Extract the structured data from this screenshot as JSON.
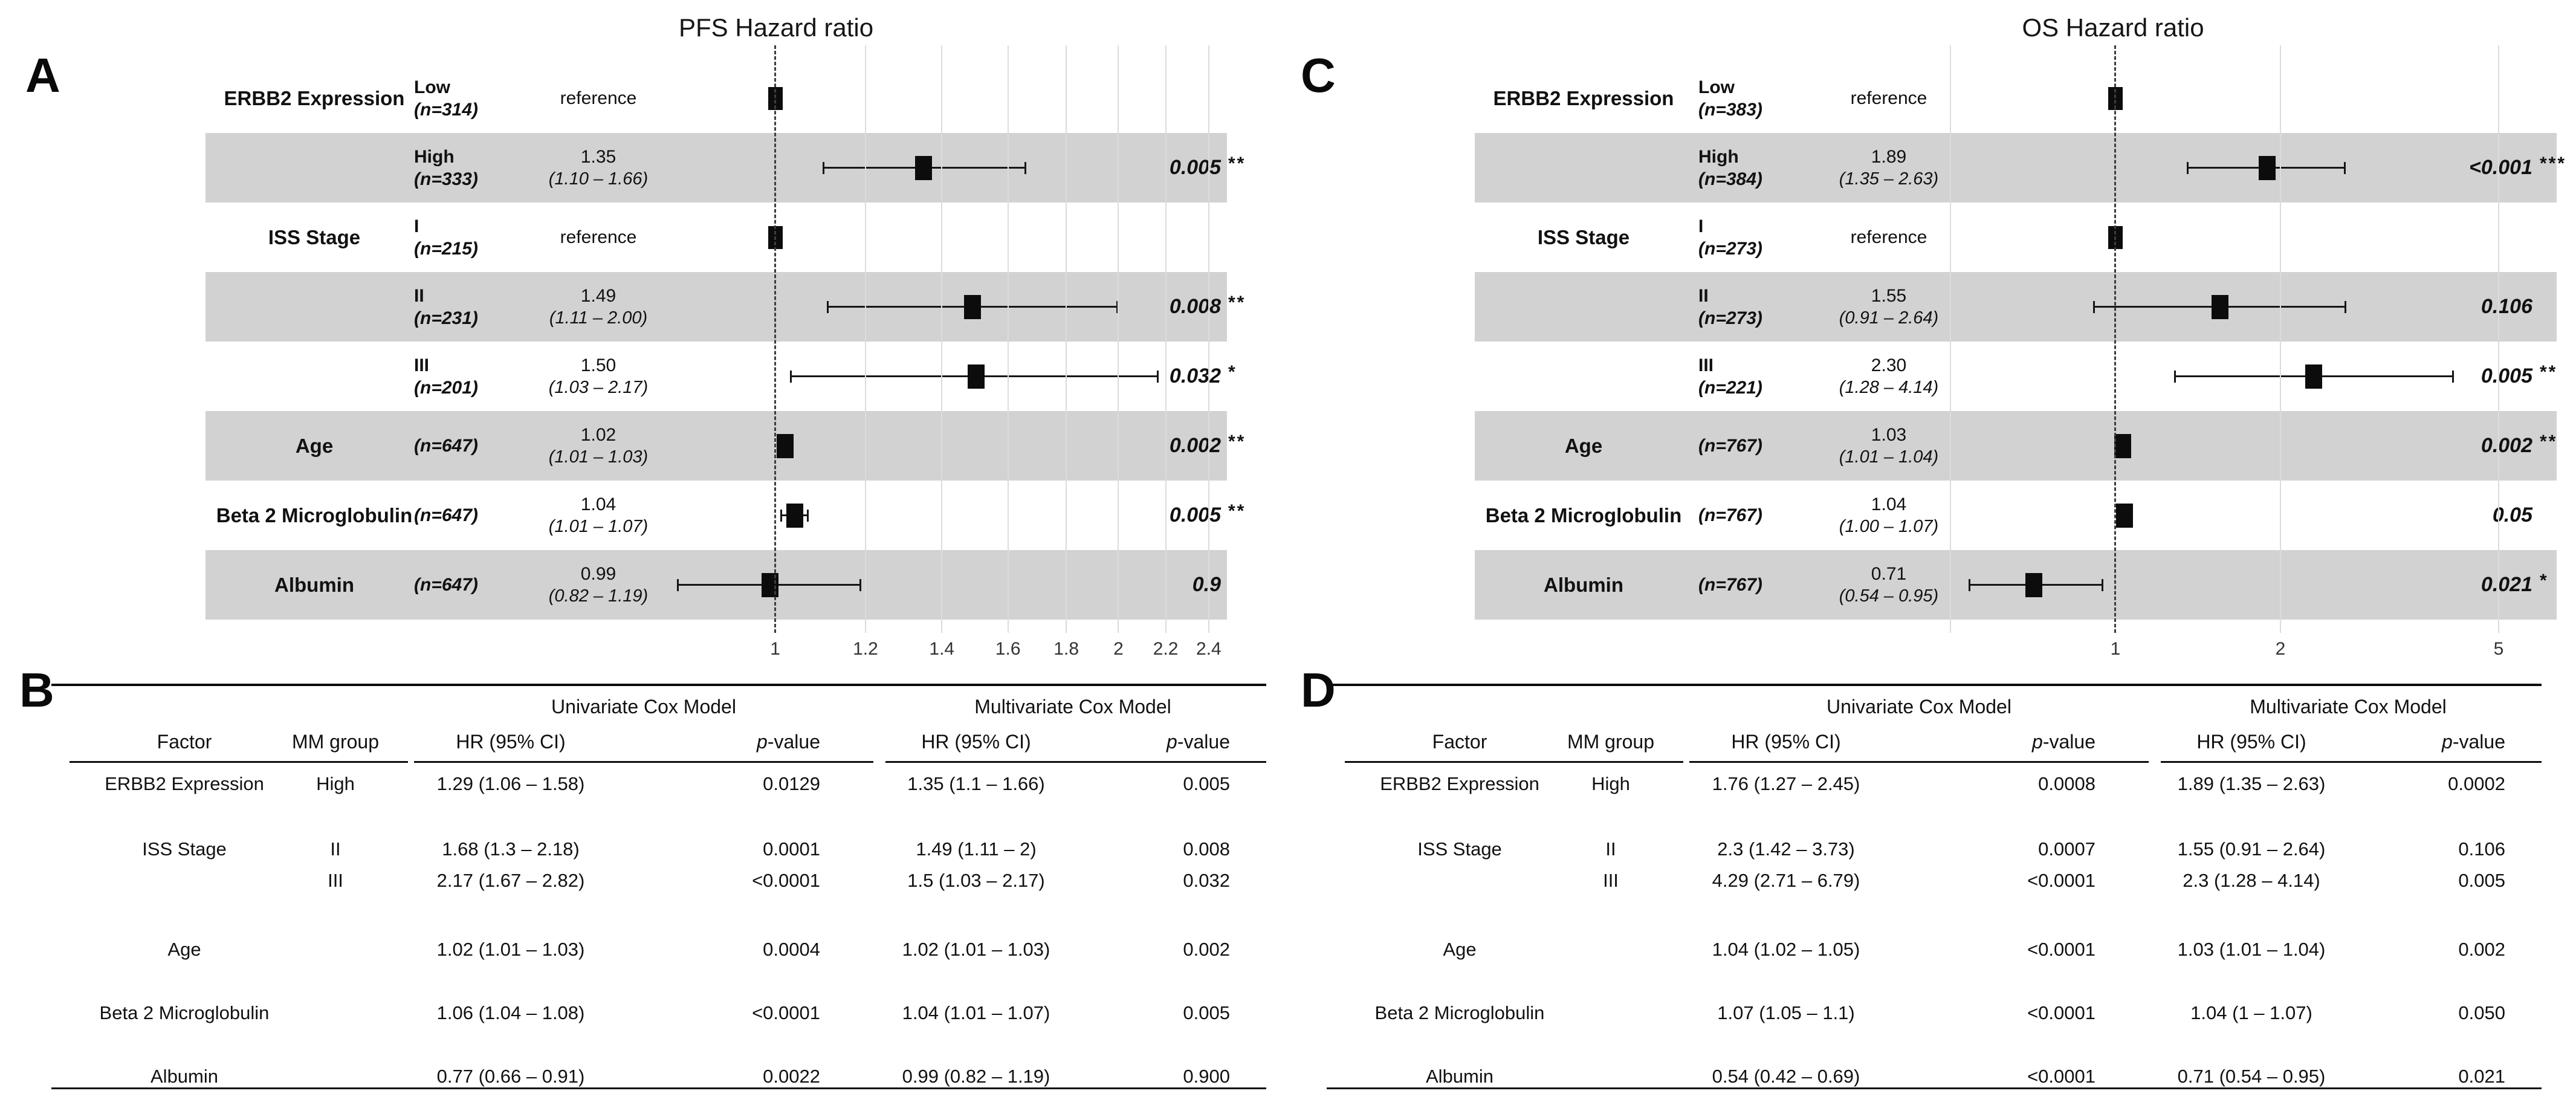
{
  "figure": {
    "letters": [
      "A",
      "B",
      "C",
      "D"
    ],
    "p_header": {
      "italic": "p",
      "rest": "-value"
    }
  },
  "chart_data": [
    {
      "type": "scatter",
      "subtype": "forest-plot",
      "panel": "A",
      "title": "PFS Hazard ratio",
      "x_scale": "log",
      "x_domain": [
        0.81,
        2.49
      ],
      "x_ticks": [
        1,
        1.2,
        1.4,
        1.6,
        1.8,
        2,
        2.2,
        2.4
      ],
      "tick_labels": [
        "1",
        "1.2",
        "1.4",
        "1.6",
        "1.8",
        "2",
        "2.2",
        "2.4"
      ],
      "light_gridlines": [
        1.2,
        1.4,
        1.6,
        1.8,
        2,
        2.2,
        2.4
      ],
      "reference_line": 1,
      "band_color": "#d2d2d2",
      "rows": [
        {
          "factor": "ERBB2 Expression",
          "group": "Low",
          "n": "(n=314)",
          "hr_label": "reference",
          "hr": 1,
          "lo": null,
          "hi": null,
          "p": "",
          "stars": "",
          "shaded": false
        },
        {
          "factor": "",
          "group": "High",
          "n": "(n=333)",
          "hr_label": "1.35",
          "ci_label": "(1.10 – 1.66)",
          "hr": 1.35,
          "lo": 1.1,
          "hi": 1.66,
          "p": "0.005",
          "stars": "**",
          "shaded": true
        },
        {
          "factor": "ISS Stage",
          "group": "I",
          "n": "(n=215)",
          "hr_label": "reference",
          "hr": 1,
          "lo": null,
          "hi": null,
          "p": "",
          "stars": "",
          "shaded": false
        },
        {
          "factor": "",
          "group": "II",
          "n": "(n=231)",
          "hr_label": "1.49",
          "ci_label": "(1.11 – 2.00)",
          "hr": 1.49,
          "lo": 1.11,
          "hi": 2.0,
          "p": "0.008",
          "stars": "**",
          "shaded": true
        },
        {
          "factor": "",
          "group": "III",
          "n": "(n=201)",
          "hr_label": "1.50",
          "ci_label": "(1.03 – 2.17)",
          "hr": 1.5,
          "lo": 1.03,
          "hi": 2.17,
          "p": "0.032",
          "stars": "*",
          "shaded": false
        },
        {
          "factor": "Age",
          "group": "",
          "n": "(n=647)",
          "hr_label": "1.02",
          "ci_label": "(1.01 – 1.03)",
          "hr": 1.02,
          "lo": 1.01,
          "hi": 1.03,
          "p": "0.002",
          "stars": "**",
          "shaded": true
        },
        {
          "factor": "Beta 2 Microglobulin",
          "group": "",
          "n": "(n=647)",
          "hr_label": "1.04",
          "ci_label": "(1.01 – 1.07)",
          "hr": 1.04,
          "lo": 1.01,
          "hi": 1.07,
          "p": "0.005",
          "stars": "**",
          "shaded": false
        },
        {
          "factor": "Albumin",
          "group": "",
          "n": "(n=647)",
          "hr_label": "0.99",
          "ci_label": "(0.82 – 1.19)",
          "hr": 0.99,
          "lo": 0.82,
          "hi": 1.19,
          "p": "0.9",
          "stars": "",
          "shaded": true
        }
      ]
    },
    {
      "type": "table",
      "panel": "B",
      "col_groups": [
        "Univariate Cox Model",
        "Multivariate Cox Model"
      ],
      "columns": [
        "Factor",
        "MM group",
        "HR (95% CI)",
        "p-value",
        "HR (95% CI)",
        "p-value"
      ],
      "rows": [
        [
          "ERBB2 Expression",
          "High",
          "1.29 (1.06 – 1.58)",
          "0.0129",
          "1.35 (1.1 – 1.66)",
          "0.005"
        ],
        [
          "ISS Stage",
          "II",
          "1.68 (1.3 – 2.18)",
          "0.0001",
          "1.49 (1.11 – 2)",
          "0.008"
        ],
        [
          "",
          "III",
          "2.17 (1.67 – 2.82)",
          "<0.0001",
          "1.5 (1.03 – 2.17)",
          "0.032"
        ],
        [
          "Age",
          "",
          "1.02 (1.01 – 1.03)",
          "0.0004",
          "1.02 (1.01 – 1.03)",
          "0.002"
        ],
        [
          "Beta 2 Microglobulin",
          "",
          "1.06 (1.04 – 1.08)",
          "<0.0001",
          "1.04 (1.01 – 1.07)",
          "0.005"
        ],
        [
          "Albumin",
          "",
          "0.77 (0.66 – 0.91)",
          "0.0022",
          "0.99 (0.82 – 1.19)",
          "0.900"
        ]
      ]
    },
    {
      "type": "scatter",
      "subtype": "forest-plot",
      "panel": "C",
      "title": "OS Hazard ratio",
      "x_scale": "log",
      "x_domain": [
        0.467,
        6.38
      ],
      "x_ticks": [
        1,
        2,
        5
      ],
      "tick_labels": [
        "1",
        "2",
        "5"
      ],
      "light_gridlines": [
        0.5,
        2,
        5
      ],
      "reference_line": 1,
      "band_color": "#d2d2d2",
      "rows": [
        {
          "factor": "ERBB2 Expression",
          "group": "Low",
          "n": "(n=383)",
          "hr_label": "reference",
          "hr": 1,
          "lo": null,
          "hi": null,
          "p": "",
          "stars": "",
          "shaded": false
        },
        {
          "factor": "",
          "group": "High",
          "n": "(n=384)",
          "hr_label": "1.89",
          "ci_label": "(1.35 – 2.63)",
          "hr": 1.89,
          "lo": 1.35,
          "hi": 2.63,
          "p": "<0.001",
          "stars": "***",
          "shaded": true
        },
        {
          "factor": "ISS Stage",
          "group": "I",
          "n": "(n=273)",
          "hr_label": "reference",
          "hr": 1,
          "lo": null,
          "hi": null,
          "p": "",
          "stars": "",
          "shaded": false
        },
        {
          "factor": "",
          "group": "II",
          "n": "(n=273)",
          "hr_label": "1.55",
          "ci_label": "(0.91 – 2.64)",
          "hr": 1.55,
          "lo": 0.91,
          "hi": 2.64,
          "p": "0.106",
          "stars": "",
          "shaded": true
        },
        {
          "factor": "",
          "group": "III",
          "n": "(n=221)",
          "hr_label": "2.30",
          "ci_label": "(1.28 – 4.14)",
          "hr": 2.3,
          "lo": 1.28,
          "hi": 4.14,
          "p": "0.005",
          "stars": "**",
          "shaded": false
        },
        {
          "factor": "Age",
          "group": "",
          "n": "(n=767)",
          "hr_label": "1.03",
          "ci_label": "(1.01 – 1.04)",
          "hr": 1.03,
          "lo": 1.01,
          "hi": 1.04,
          "p": "0.002",
          "stars": "**",
          "shaded": true
        },
        {
          "factor": "Beta 2 Microglobulin",
          "group": "",
          "n": "(n=767)",
          "hr_label": "1.04",
          "ci_label": "(1.00 – 1.07)",
          "hr": 1.04,
          "lo": 1.0,
          "hi": 1.07,
          "p": "0.05",
          "stars": "",
          "shaded": false
        },
        {
          "factor": "Albumin",
          "group": "",
          "n": "(n=767)",
          "hr_label": "0.71",
          "ci_label": "(0.54 – 0.95)",
          "hr": 0.71,
          "lo": 0.54,
          "hi": 0.95,
          "p": "0.021",
          "stars": "*",
          "shaded": true
        }
      ]
    },
    {
      "type": "table",
      "panel": "D",
      "col_groups": [
        "Univariate Cox Model",
        "Multivariate Cox Model"
      ],
      "columns": [
        "Factor",
        "MM group",
        "HR (95% CI)",
        "p-value",
        "HR (95% CI)",
        "p-value"
      ],
      "rows": [
        [
          "ERBB2 Expression",
          "High",
          "1.76 (1.27 – 2.45)",
          "0.0008",
          "1.89 (1.35 – 2.63)",
          "0.0002"
        ],
        [
          "ISS Stage",
          "II",
          "2.3 (1.42 – 3.73)",
          "0.0007",
          "1.55 (0.91 – 2.64)",
          "0.106"
        ],
        [
          "",
          "III",
          "4.29 (2.71 – 6.79)",
          "<0.0001",
          "2.3 (1.28 – 4.14)",
          "0.005"
        ],
        [
          "Age",
          "",
          "1.04 (1.02 – 1.05)",
          "<0.0001",
          "1.03 (1.01 – 1.04)",
          "0.002"
        ],
        [
          "Beta 2 Microglobulin",
          "",
          "1.07 (1.05 – 1.1)",
          "<0.0001",
          "1.04 (1 – 1.07)",
          "0.050"
        ],
        [
          "Albumin",
          "",
          "0.54 (0.42 – 0.69)",
          "<0.0001",
          "0.71 (0.54 – 0.95)",
          "0.021"
        ]
      ]
    }
  ]
}
